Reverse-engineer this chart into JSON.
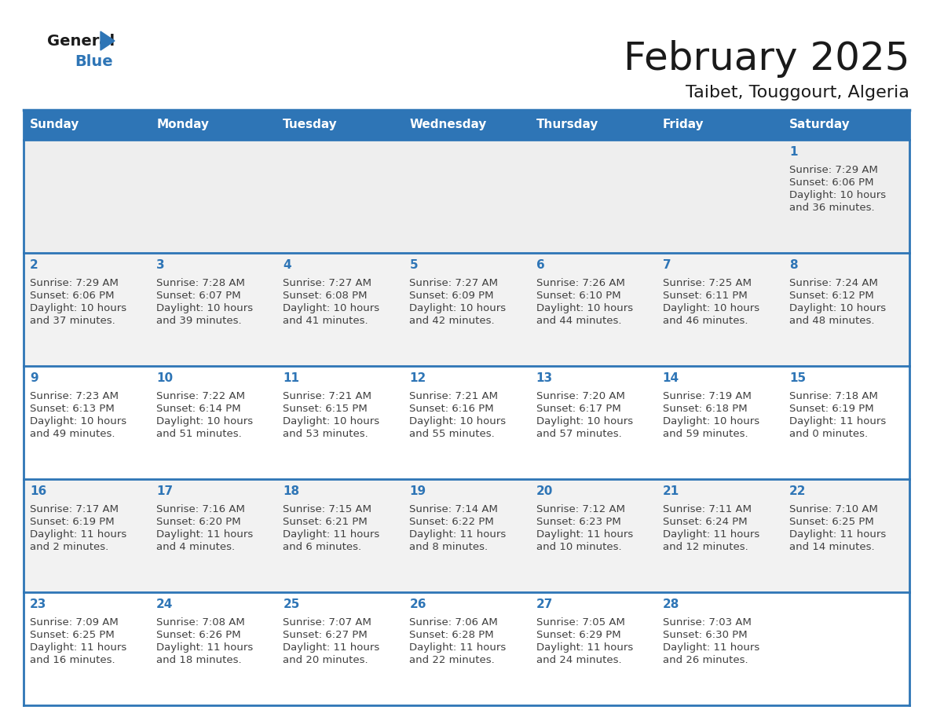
{
  "title": "February 2025",
  "subtitle": "Taibet, Touggourt, Algeria",
  "header_bg": "#2E75B6",
  "header_text_color": "#FFFFFF",
  "cell_bg_row0": "#EEEEEE",
  "cell_bg_row1": "#F2F2F2",
  "cell_bg_row2": "#FFFFFF",
  "cell_bg_row3": "#F2F2F2",
  "cell_bg_row4": "#FFFFFF",
  "day_number_color": "#2E75B6",
  "info_text_color": "#404040",
  "border_color": "#2E75B6",
  "weekdays": [
    "Sunday",
    "Monday",
    "Tuesday",
    "Wednesday",
    "Thursday",
    "Friday",
    "Saturday"
  ],
  "days": [
    {
      "day": 1,
      "col": 6,
      "row": 0,
      "sunrise": "7:29 AM",
      "sunset": "6:06 PM",
      "daylight_h": "10 hours",
      "daylight_m": "and 36 minutes."
    },
    {
      "day": 2,
      "col": 0,
      "row": 1,
      "sunrise": "7:29 AM",
      "sunset": "6:06 PM",
      "daylight_h": "10 hours",
      "daylight_m": "and 37 minutes."
    },
    {
      "day": 3,
      "col": 1,
      "row": 1,
      "sunrise": "7:28 AM",
      "sunset": "6:07 PM",
      "daylight_h": "10 hours",
      "daylight_m": "and 39 minutes."
    },
    {
      "day": 4,
      "col": 2,
      "row": 1,
      "sunrise": "7:27 AM",
      "sunset": "6:08 PM",
      "daylight_h": "10 hours",
      "daylight_m": "and 41 minutes."
    },
    {
      "day": 5,
      "col": 3,
      "row": 1,
      "sunrise": "7:27 AM",
      "sunset": "6:09 PM",
      "daylight_h": "10 hours",
      "daylight_m": "and 42 minutes."
    },
    {
      "day": 6,
      "col": 4,
      "row": 1,
      "sunrise": "7:26 AM",
      "sunset": "6:10 PM",
      "daylight_h": "10 hours",
      "daylight_m": "and 44 minutes."
    },
    {
      "day": 7,
      "col": 5,
      "row": 1,
      "sunrise": "7:25 AM",
      "sunset": "6:11 PM",
      "daylight_h": "10 hours",
      "daylight_m": "and 46 minutes."
    },
    {
      "day": 8,
      "col": 6,
      "row": 1,
      "sunrise": "7:24 AM",
      "sunset": "6:12 PM",
      "daylight_h": "10 hours",
      "daylight_m": "and 48 minutes."
    },
    {
      "day": 9,
      "col": 0,
      "row": 2,
      "sunrise": "7:23 AM",
      "sunset": "6:13 PM",
      "daylight_h": "10 hours",
      "daylight_m": "and 49 minutes."
    },
    {
      "day": 10,
      "col": 1,
      "row": 2,
      "sunrise": "7:22 AM",
      "sunset": "6:14 PM",
      "daylight_h": "10 hours",
      "daylight_m": "and 51 minutes."
    },
    {
      "day": 11,
      "col": 2,
      "row": 2,
      "sunrise": "7:21 AM",
      "sunset": "6:15 PM",
      "daylight_h": "10 hours",
      "daylight_m": "and 53 minutes."
    },
    {
      "day": 12,
      "col": 3,
      "row": 2,
      "sunrise": "7:21 AM",
      "sunset": "6:16 PM",
      "daylight_h": "10 hours",
      "daylight_m": "and 55 minutes."
    },
    {
      "day": 13,
      "col": 4,
      "row": 2,
      "sunrise": "7:20 AM",
      "sunset": "6:17 PM",
      "daylight_h": "10 hours",
      "daylight_m": "and 57 minutes."
    },
    {
      "day": 14,
      "col": 5,
      "row": 2,
      "sunrise": "7:19 AM",
      "sunset": "6:18 PM",
      "daylight_h": "10 hours",
      "daylight_m": "and 59 minutes."
    },
    {
      "day": 15,
      "col": 6,
      "row": 2,
      "sunrise": "7:18 AM",
      "sunset": "6:19 PM",
      "daylight_h": "11 hours",
      "daylight_m": "and 0 minutes."
    },
    {
      "day": 16,
      "col": 0,
      "row": 3,
      "sunrise": "7:17 AM",
      "sunset": "6:19 PM",
      "daylight_h": "11 hours",
      "daylight_m": "and 2 minutes."
    },
    {
      "day": 17,
      "col": 1,
      "row": 3,
      "sunrise": "7:16 AM",
      "sunset": "6:20 PM",
      "daylight_h": "11 hours",
      "daylight_m": "and 4 minutes."
    },
    {
      "day": 18,
      "col": 2,
      "row": 3,
      "sunrise": "7:15 AM",
      "sunset": "6:21 PM",
      "daylight_h": "11 hours",
      "daylight_m": "and 6 minutes."
    },
    {
      "day": 19,
      "col": 3,
      "row": 3,
      "sunrise": "7:14 AM",
      "sunset": "6:22 PM",
      "daylight_h": "11 hours",
      "daylight_m": "and 8 minutes."
    },
    {
      "day": 20,
      "col": 4,
      "row": 3,
      "sunrise": "7:12 AM",
      "sunset": "6:23 PM",
      "daylight_h": "11 hours",
      "daylight_m": "and 10 minutes."
    },
    {
      "day": 21,
      "col": 5,
      "row": 3,
      "sunrise": "7:11 AM",
      "sunset": "6:24 PM",
      "daylight_h": "11 hours",
      "daylight_m": "and 12 minutes."
    },
    {
      "day": 22,
      "col": 6,
      "row": 3,
      "sunrise": "7:10 AM",
      "sunset": "6:25 PM",
      "daylight_h": "11 hours",
      "daylight_m": "and 14 minutes."
    },
    {
      "day": 23,
      "col": 0,
      "row": 4,
      "sunrise": "7:09 AM",
      "sunset": "6:25 PM",
      "daylight_h": "11 hours",
      "daylight_m": "and 16 minutes."
    },
    {
      "day": 24,
      "col": 1,
      "row": 4,
      "sunrise": "7:08 AM",
      "sunset": "6:26 PM",
      "daylight_h": "11 hours",
      "daylight_m": "and 18 minutes."
    },
    {
      "day": 25,
      "col": 2,
      "row": 4,
      "sunrise": "7:07 AM",
      "sunset": "6:27 PM",
      "daylight_h": "11 hours",
      "daylight_m": "and 20 minutes."
    },
    {
      "day": 26,
      "col": 3,
      "row": 4,
      "sunrise": "7:06 AM",
      "sunset": "6:28 PM",
      "daylight_h": "11 hours",
      "daylight_m": "and 22 minutes."
    },
    {
      "day": 27,
      "col": 4,
      "row": 4,
      "sunrise": "7:05 AM",
      "sunset": "6:29 PM",
      "daylight_h": "11 hours",
      "daylight_m": "and 24 minutes."
    },
    {
      "day": 28,
      "col": 5,
      "row": 4,
      "sunrise": "7:03 AM",
      "sunset": "6:30 PM",
      "daylight_h": "11 hours",
      "daylight_m": "and 26 minutes."
    }
  ]
}
